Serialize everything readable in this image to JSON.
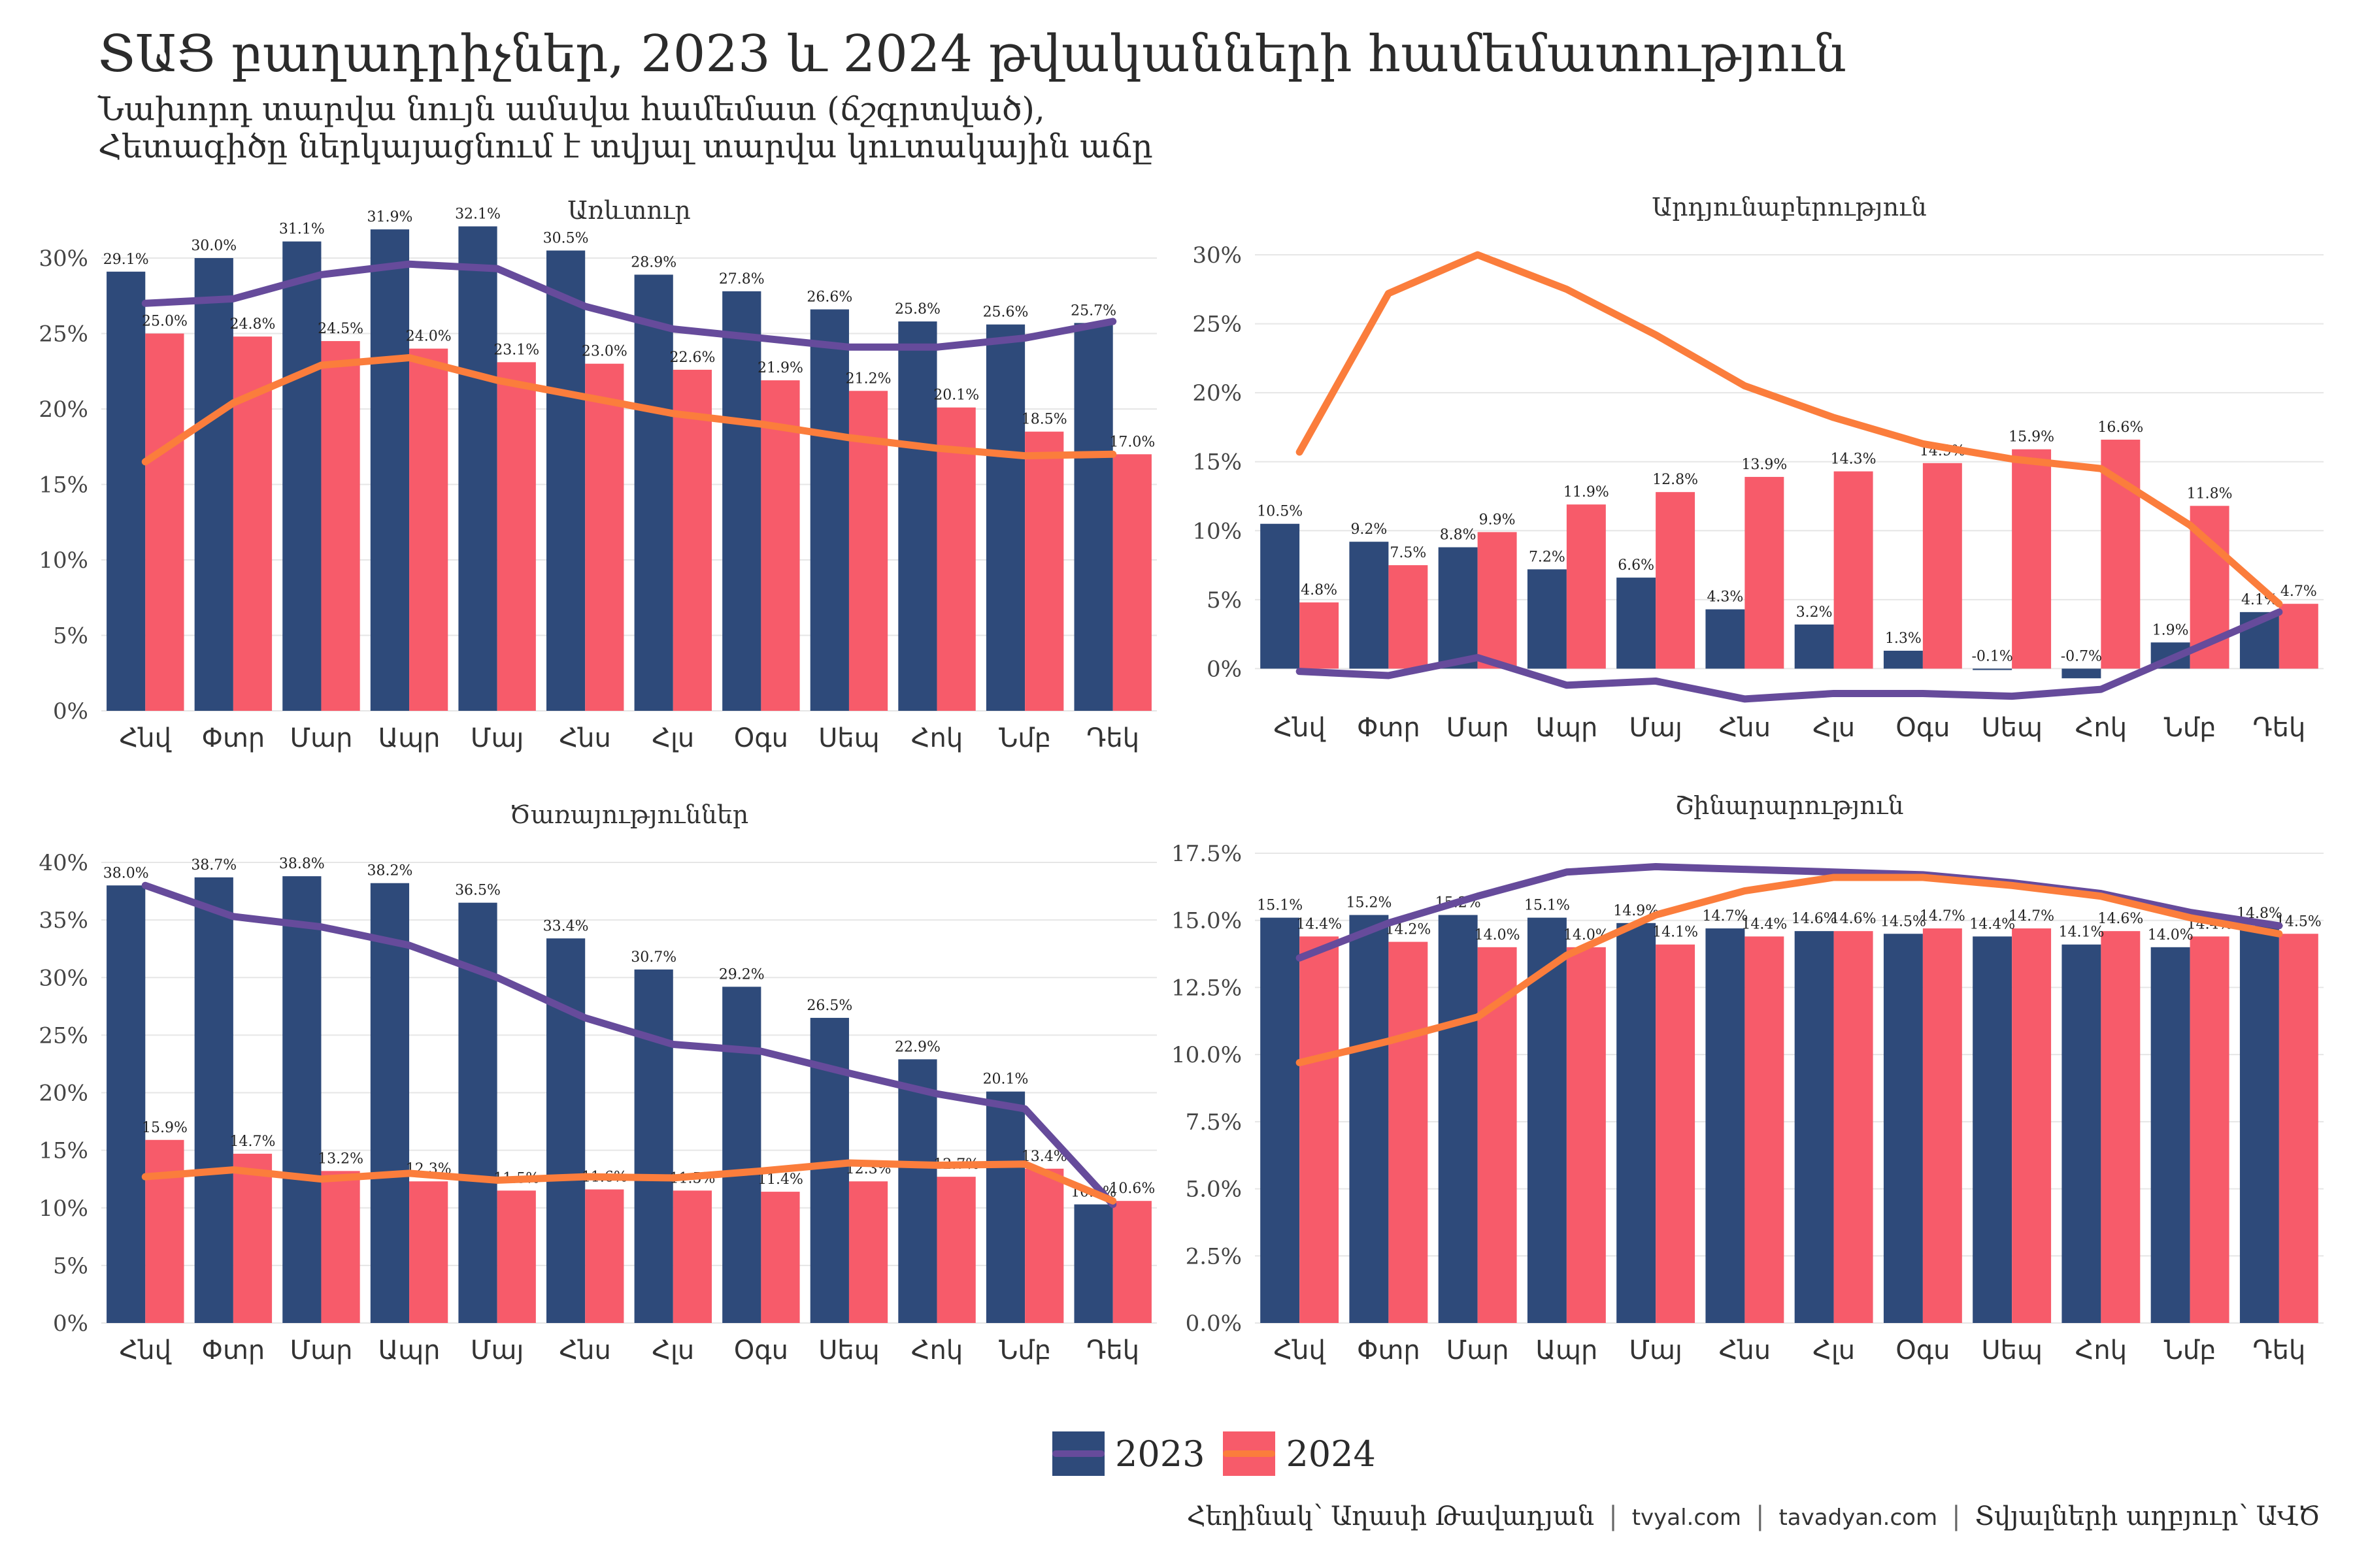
{
  "title": "ՏԱՑ բաղադրիչներ, 2023 և 2024 թվականների համեմատություն",
  "subtitle_line1": "Նախորդ տարվա նույն ամսվա համեմատ (ճշգրտված),",
  "subtitle_line2": "Հետագիծը ներկայացնում է տվյալ տարվա կուտակային աճը",
  "legend": {
    "label_2023": "2023",
    "label_2024": "2024"
  },
  "caption": {
    "author": "Հեղինակ՝ Աղասի Թավադյան",
    "site1": "tvyal.com",
    "site2": "tavadyan.com",
    "source": "Տվյալների աղբյուր՝ ԱՎԾ"
  },
  "colors": {
    "bar_2023": "#2e4a7a",
    "bar_2024": "#f75b6a",
    "line_2023": "#664b9b",
    "line_2024": "#fb7d3c",
    "grid": "#e6e6e6",
    "text": "#333333"
  },
  "chart_data": [
    {
      "type": "bar",
      "title": "Առևտուր",
      "categories": [
        "Հնվ",
        "Փտր",
        "Մար",
        "Ապր",
        "Մայ",
        "Հնս",
        "Հլս",
        "Օգս",
        "Սեպ",
        "Հոկ",
        "Նմբ",
        "Դեկ"
      ],
      "ylim": [
        0,
        30
      ],
      "yticks": [
        "0%",
        "5%",
        "10%",
        "15%",
        "20%",
        "25%",
        "30%"
      ],
      "ytick_values": [
        0,
        5,
        10,
        15,
        20,
        25,
        30
      ],
      "series": [
        {
          "name": "2023",
          "values": [
            29.1,
            30.0,
            31.1,
            31.9,
            32.1,
            30.5,
            28.9,
            27.8,
            26.6,
            25.8,
            25.6,
            25.7
          ],
          "labels": [
            "29.1%",
            "30.0%",
            "31.1%",
            "31.9%",
            "32.1%",
            "30.5%",
            "28.9%",
            "27.8%",
            "26.6%",
            "25.8%",
            "25.6%",
            "25.7%"
          ]
        },
        {
          "name": "2024",
          "values": [
            25.0,
            24.8,
            24.5,
            24.0,
            23.1,
            23.0,
            22.6,
            21.9,
            21.2,
            20.1,
            18.5,
            17.0
          ],
          "labels": [
            "25.0%",
            "24.8%",
            "24.5%",
            "24.0%",
            "23.1%",
            "23.0%",
            "22.6%",
            "21.9%",
            "21.2%",
            "20.1%",
            "18.5%",
            "17.0%"
          ]
        }
      ],
      "lines": [
        {
          "name": "2023",
          "values": [
            27.0,
            27.3,
            28.9,
            29.6,
            29.3,
            26.8,
            25.3,
            24.7,
            24.1,
            24.1,
            24.7,
            25.8
          ]
        },
        {
          "name": "2024",
          "values": [
            16.5,
            20.4,
            22.9,
            23.4,
            21.9,
            20.8,
            19.7,
            19.0,
            18.1,
            17.4,
            16.9,
            17.0
          ]
        }
      ]
    },
    {
      "type": "bar",
      "title": "Արդյունաբերություն",
      "categories": [
        "Հնվ",
        "Փտր",
        "Մար",
        "Ապր",
        "Մայ",
        "Հնս",
        "Հլս",
        "Օգս",
        "Սեպ",
        "Հոկ",
        "Նմբ",
        "Դեկ"
      ],
      "ylim": [
        -2.3,
        30
      ],
      "yticks": [
        "0%",
        "5%",
        "10%",
        "15%",
        "20%",
        "25%",
        "30%"
      ],
      "ytick_values": [
        0,
        5,
        10,
        15,
        20,
        25,
        30
      ],
      "series": [
        {
          "name": "2023",
          "values": [
            10.5,
            9.2,
            8.8,
            7.2,
            6.6,
            4.3,
            3.2,
            1.3,
            -0.1,
            -0.7,
            1.9,
            4.1
          ],
          "labels": [
            "10.5%",
            "9.2%",
            "8.8%",
            "7.2%",
            "6.6%",
            "4.3%",
            "3.2%",
            "1.3%",
            "-0.1%",
            "-0.7%",
            "1.9%",
            "4.1%"
          ]
        },
        {
          "name": "2024",
          "values": [
            4.8,
            7.5,
            9.9,
            11.9,
            12.8,
            13.9,
            14.3,
            14.9,
            15.9,
            16.6,
            11.8,
            4.7
          ],
          "labels": [
            "4.8%",
            "7.5%",
            "9.9%",
            "11.9%",
            "12.8%",
            "13.9%",
            "14.3%",
            "14.9%",
            "15.9%",
            "16.6%",
            "11.8%",
            "4.7%"
          ]
        }
      ],
      "lines": [
        {
          "name": "2023",
          "values": [
            -0.2,
            -0.5,
            0.8,
            -1.2,
            -0.9,
            -2.2,
            -1.8,
            -1.8,
            -2.0,
            -1.5,
            1.3,
            4.1
          ]
        },
        {
          "name": "2024",
          "values": [
            15.7,
            27.2,
            30.0,
            27.5,
            24.2,
            20.5,
            18.2,
            16.3,
            15.2,
            14.5,
            10.4,
            4.7
          ]
        }
      ]
    },
    {
      "type": "bar",
      "title": "Ծառայություններ",
      "categories": [
        "Հնվ",
        "Փտր",
        "Մար",
        "Ապր",
        "Մայ",
        "Հնս",
        "Հլս",
        "Օգս",
        "Սեպ",
        "Հոկ",
        "Նմբ",
        "Դեկ"
      ],
      "ylim": [
        0,
        40
      ],
      "yticks": [
        "0%",
        "5%",
        "10%",
        "15%",
        "20%",
        "25%",
        "30%",
        "35%",
        "40%"
      ],
      "ytick_values": [
        0,
        5,
        10,
        15,
        20,
        25,
        30,
        35,
        40
      ],
      "series": [
        {
          "name": "2023",
          "values": [
            38.0,
            38.7,
            38.8,
            38.2,
            36.5,
            33.4,
            30.7,
            29.2,
            26.5,
            22.9,
            20.1,
            10.3
          ],
          "labels": [
            "38.0%",
            "38.7%",
            "38.8%",
            "38.2%",
            "36.5%",
            "33.4%",
            "30.7%",
            "29.2%",
            "26.5%",
            "22.9%",
            "20.1%",
            "10.3%"
          ]
        },
        {
          "name": "2024",
          "values": [
            15.9,
            14.7,
            13.2,
            12.3,
            11.5,
            11.6,
            11.5,
            11.4,
            12.3,
            12.7,
            13.4,
            10.6
          ],
          "labels": [
            "15.9%",
            "14.7%",
            "13.2%",
            "12.3%",
            "11.5%",
            "11.6%",
            "11.5%",
            "11.4%",
            "12.3%",
            "12.7%",
            "13.4%",
            "10.6%"
          ]
        }
      ],
      "lines": [
        {
          "name": "2023",
          "values": [
            38.0,
            35.3,
            34.4,
            32.8,
            30.0,
            26.5,
            24.2,
            23.6,
            21.7,
            19.9,
            18.6,
            10.3
          ]
        },
        {
          "name": "2024",
          "values": [
            12.7,
            13.3,
            12.5,
            13.0,
            12.4,
            12.7,
            12.6,
            13.2,
            13.9,
            13.7,
            13.8,
            10.6
          ]
        }
      ]
    },
    {
      "type": "bar",
      "title": "Շինարարություն",
      "categories": [
        "Հնվ",
        "Փտր",
        "Մար",
        "Ապր",
        "Մայ",
        "Հնս",
        "Հլս",
        "Օգս",
        "Սեպ",
        "Հոկ",
        "Նմբ",
        "Դեկ"
      ],
      "ylim": [
        0,
        17.5
      ],
      "yticks": [
        "0.0%",
        "2.5%",
        "5.0%",
        "7.5%",
        "10.0%",
        "12.5%",
        "15.0%",
        "17.5%"
      ],
      "ytick_values": [
        0,
        2.5,
        5,
        7.5,
        10,
        12.5,
        15,
        17.5
      ],
      "series": [
        {
          "name": "2023",
          "values": [
            15.1,
            15.2,
            15.2,
            15.1,
            14.9,
            14.7,
            14.6,
            14.5,
            14.4,
            14.1,
            14.0,
            14.8
          ],
          "labels": [
            "15.1%",
            "15.2%",
            "15.2%",
            "15.1%",
            "14.9%",
            "14.7%",
            "14.6%",
            "14.5%",
            "14.4%",
            "14.1%",
            "14.0%",
            "14.8%"
          ]
        },
        {
          "name": "2024",
          "values": [
            14.4,
            14.2,
            14.0,
            14.0,
            14.1,
            14.4,
            14.6,
            14.7,
            14.7,
            14.6,
            14.4,
            14.5
          ],
          "labels": [
            "14.4%",
            "14.2%",
            "14.0%",
            "14.0%",
            "14.1%",
            "14.4%",
            "14.6%",
            "14.7%",
            "14.7%",
            "14.6%",
            "14.4%",
            "14.5%"
          ]
        }
      ],
      "lines": [
        {
          "name": "2023",
          "values": [
            13.6,
            14.9,
            15.9,
            16.8,
            17.0,
            16.9,
            16.8,
            16.7,
            16.4,
            16.0,
            15.3,
            14.8
          ]
        },
        {
          "name": "2024",
          "values": [
            9.7,
            10.5,
            11.4,
            13.7,
            15.2,
            16.1,
            16.6,
            16.6,
            16.3,
            15.9,
            15.1,
            14.5
          ]
        }
      ]
    }
  ]
}
